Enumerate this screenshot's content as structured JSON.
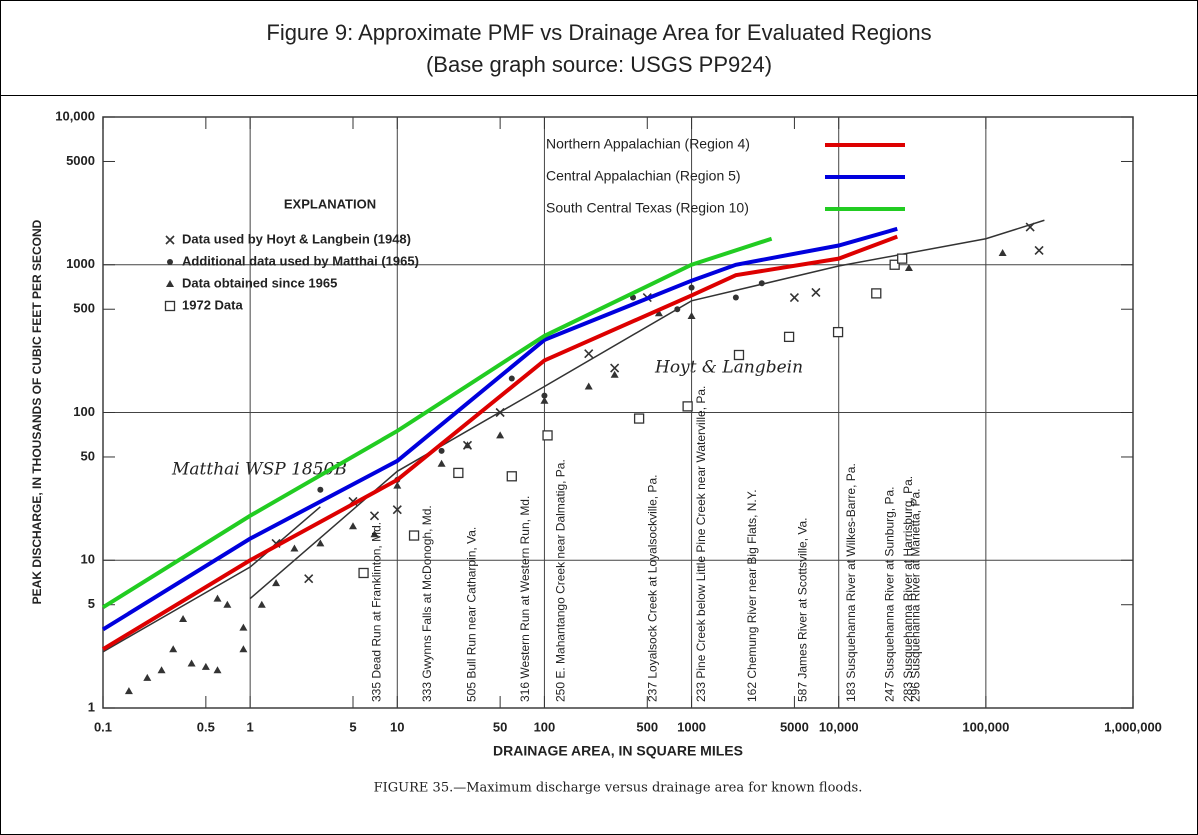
{
  "chart_data": {
    "type": "line",
    "title": "Figure 9: Approximate PMF vs Drainage Area for Evaluated Regions",
    "subtitle": "(Base graph source: USGS PP924)",
    "xlabel": "DRAINAGE AREA, IN SQUARE MILES",
    "ylabel": "PEAK DISCHARGE, IN THOUSANDS OF CUBIC FEET PER SECOND",
    "caption": "FIGURE 35.—Maximum discharge versus drainage area for known floods.",
    "legend_title": "EXPLANATION",
    "xlog": true,
    "ylog": true,
    "grid": true,
    "xlim": [
      0.1,
      1000000
    ],
    "ylim": [
      1,
      10000
    ],
    "xticks": [
      0.1,
      0.5,
      1,
      5,
      10,
      50,
      100,
      500,
      1000,
      5000,
      {
        "value": 10000,
        "label": "10,000"
      },
      {
        "value": 100000,
        "label": "100,000"
      },
      {
        "value": 1000000,
        "label": "1,000,000"
      }
    ],
    "yticks": [
      1,
      5,
      10,
      50,
      100,
      500,
      1000,
      5000,
      {
        "value": 10000,
        "label": "10,000"
      }
    ],
    "series": [
      {
        "name": "Northern Appalachian (Region 4)",
        "color": "#dd0000",
        "x": [
          0.1,
          1,
          10,
          100,
          1000,
          2000,
          10000,
          25000
        ],
        "values": [
          2.5,
          10,
          35,
          225,
          620,
          850,
          1100,
          1550
        ]
      },
      {
        "name": "Central Appalachian (Region 5)",
        "color": "#0000dd",
        "x": [
          0.1,
          1,
          10,
          100,
          1000,
          2000,
          10000,
          25000
        ],
        "values": [
          3.4,
          14,
          47,
          310,
          780,
          1000,
          1350,
          1750
        ]
      },
      {
        "name": "South Central Texas (Region 10)",
        "color": "#22cc22",
        "x": [
          0.1,
          1,
          10,
          100,
          1000,
          3500
        ],
        "values": [
          4.8,
          20,
          75,
          330,
          1000,
          1500
        ]
      }
    ],
    "envelope_curves": [
      {
        "label": "Hoyt & Langbein",
        "x": [
          1,
          10,
          100,
          1000,
          10000,
          100000,
          250000
        ],
        "values": [
          5.5,
          40,
          150,
          570,
          980,
          1500,
          2000
        ]
      },
      {
        "label": "Matthai WSP 1850B",
        "x": [
          0.1,
          1,
          3
        ],
        "values": [
          2.4,
          9,
          23
        ]
      }
    ],
    "point_series": [
      {
        "name": "Data used by Hoyt & Langbein (1948)",
        "marker": "x",
        "x": [
          1.5,
          2.5,
          5,
          7,
          10,
          30,
          50,
          200,
          300,
          500,
          5000,
          7000,
          200000,
          230000
        ],
        "values": [
          13,
          7.5,
          25,
          20,
          22,
          60,
          100,
          250,
          200,
          600,
          600,
          650,
          1800,
          1250
        ]
      },
      {
        "name": "Additional data used by Matthai (1965)",
        "marker": "dot",
        "x": [
          3,
          10,
          20,
          60,
          100,
          400,
          800,
          1000,
          2000,
          3000
        ],
        "values": [
          30,
          35,
          55,
          170,
          130,
          600,
          500,
          700,
          600,
          750
        ]
      },
      {
        "name": "Data obtained since 1965",
        "marker": "triangle",
        "x": [
          0.15,
          0.2,
          0.25,
          0.3,
          0.35,
          0.4,
          0.5,
          0.6,
          0.6,
          0.7,
          0.9,
          0.9,
          1.2,
          1.5,
          2,
          3,
          5,
          7,
          10,
          20,
          30,
          50,
          100,
          200,
          300,
          600,
          1000,
          30000,
          130000
        ],
        "values": [
          1.3,
          1.6,
          1.8,
          2.5,
          4,
          2,
          1.9,
          1.8,
          5.5,
          5,
          3.5,
          2.5,
          5,
          7,
          12,
          13,
          17,
          15,
          32,
          45,
          60,
          70,
          120,
          150,
          180,
          470,
          450,
          950,
          1200
        ]
      },
      {
        "name": "1972 Data",
        "marker": "square",
        "x": [
          5.9,
          13,
          26,
          60,
          105,
          440,
          940,
          2100,
          4600,
          9900,
          18000,
          24000,
          27000
        ],
        "values": [
          8.2,
          14.7,
          39,
          37,
          70,
          91,
          110,
          245,
          325,
          350,
          640,
          1000,
          1100
        ],
        "labels": [
          "335 Dead Run at Franklinton, Md.",
          "333 Gwynns Falls at McDonogh, Md.",
          "505 Bull Run near Catharpin, Va.",
          "316 Western Run at Western Run, Md.",
          "250 E. Mahantango Creek near Dalmatig, Pa.",
          "237 Loyalsock Creek at Loyalsockville, Pa.",
          "233 Pine Creek below Little Pine Creek near Waterville, Pa.",
          "162 Chemung River near Big Flats, N.Y.",
          "587 James River at Scottsville, Va.",
          "183 Susquehanna River at Wilkes-Barre, Pa.",
          "247 Susquehanna River at Sunburg, Pa.",
          "283 Susquehanna River at Harrisburg, Pa.",
          "296 Susquehanna River at Marietta, Pa."
        ]
      }
    ]
  }
}
